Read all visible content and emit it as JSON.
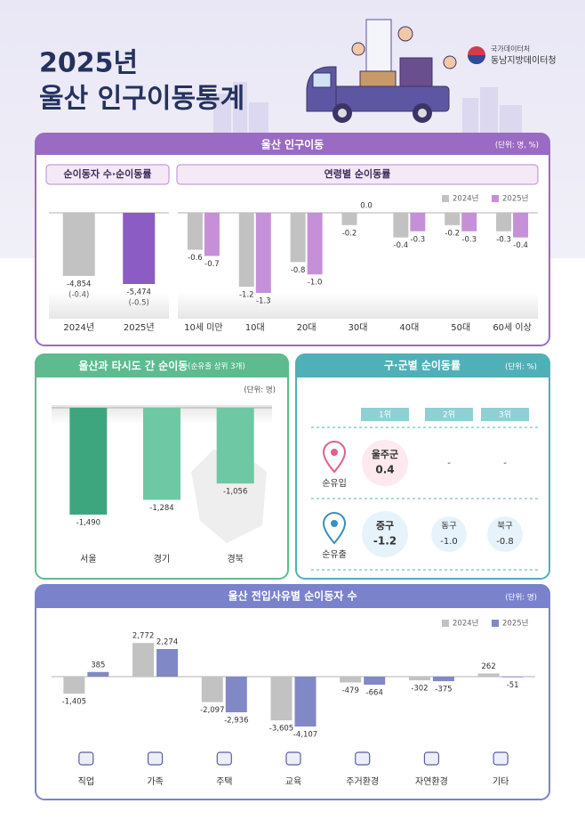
{
  "header": {
    "year_title": "2025년",
    "title": "울산 인구이동통계",
    "org_small": "국가데이터처",
    "org": "동남지방데이터청"
  },
  "section": {
    "title": "울산 인구이동",
    "unit": "(단위: 명, %)"
  },
  "chart_data": [
    {
      "type": "bar",
      "title": "순이동자 수·순이동률",
      "categories": [
        "2024년",
        "2025년"
      ],
      "values": [
        -4854,
        -5474
      ],
      "value_labels": [
        "-4,854",
        "-5,474"
      ],
      "rates": [
        -0.4,
        -0.5
      ],
      "rate_labels": [
        "(-0.4)",
        "(-0.5)"
      ],
      "colors": [
        "#c2c2c2",
        "#8b5cc4"
      ]
    },
    {
      "type": "bar",
      "title": "연령별 순이동률",
      "categories": [
        "10세 미만",
        "10대",
        "20대",
        "30대",
        "40대",
        "50대",
        "60세 이상"
      ],
      "series": [
        {
          "name": "2024년",
          "color": "#c2c2c2",
          "values": [
            -0.6,
            -1.2,
            -0.8,
            -0.2,
            -0.4,
            -0.2,
            -0.3
          ]
        },
        {
          "name": "2025년",
          "color": "#c690d8",
          "values": [
            -0.7,
            -1.3,
            -1.0,
            0.0,
            -0.3,
            -0.3,
            -0.4
          ],
          "value_labels": [
            "-0.7",
            "-1.3",
            "-1.0",
            "0.0",
            "-0.3",
            "-0.3",
            "-0.4"
          ]
        }
      ],
      "legend": "upper right"
    },
    {
      "type": "bar",
      "title": "울산과 타시도 간 순이동",
      "subtitle": "(순유출 상위 3개)",
      "unit": "(단위: 명)",
      "categories": [
        "서울",
        "경기",
        "경북"
      ],
      "values": [
        -1490,
        -1284,
        -1056
      ],
      "value_labels": [
        "-1,490",
        "-1,284",
        "-1,056"
      ],
      "colors": [
        "#3ea67f",
        "#6ec8a4",
        "#6ec8a4"
      ]
    },
    {
      "type": "bar",
      "title": "울산 전입사유별 순이동자 수",
      "unit": "(단위: 명)",
      "categories": [
        "직업",
        "가족",
        "주택",
        "교육",
        "주거환경",
        "자연환경",
        "기타"
      ],
      "series": [
        {
          "name": "2024년",
          "color": "#c2c2c2",
          "values": [
            -1405,
            2772,
            -2097,
            -3605,
            -479,
            -302,
            262
          ],
          "value_labels": [
            "-1,405",
            "2,772",
            "-2,097",
            "-3,605",
            "-479",
            "-302",
            "262"
          ]
        },
        {
          "name": "2025년",
          "color": "#8088c6",
          "values": [
            385,
            2274,
            -2936,
            -4107,
            -664,
            -375,
            -51
          ],
          "value_labels": [
            "385",
            "2,274",
            "-2,936",
            "-4,107",
            "-664",
            "-375",
            "-51"
          ]
        }
      ],
      "legend": "upper right"
    }
  ],
  "district_table": {
    "title": "구·군별 순이동률",
    "unit": "(단위: %)",
    "columns": [
      "1위",
      "2위",
      "3위"
    ],
    "rows": [
      {
        "label": "순유입",
        "cells": [
          {
            "name": "울주군",
            "value": "0.4"
          },
          "-",
          "-"
        ]
      },
      {
        "label": "순유출",
        "cells": [
          {
            "name": "중구",
            "value": "-1.2"
          },
          {
            "name": "동구",
            "value": "-1.0"
          },
          {
            "name": "북구",
            "value": "-0.8"
          }
        ]
      }
    ]
  }
}
